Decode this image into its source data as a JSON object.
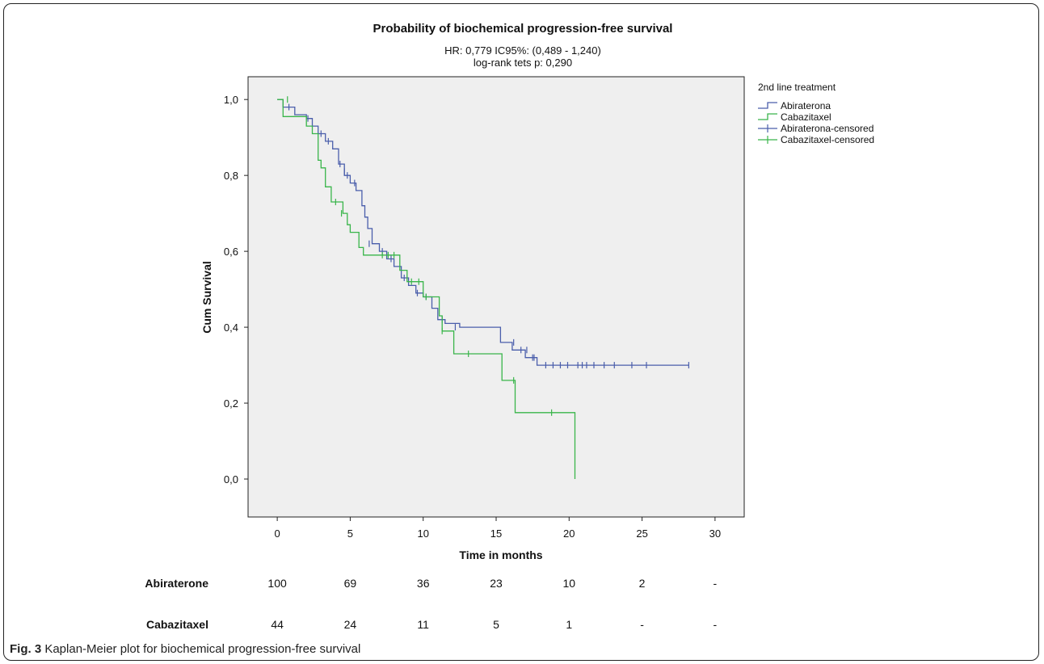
{
  "chart_data": {
    "type": "line",
    "title": "Probability of biochemical progression-free survival",
    "subtitle_lines": [
      "HR: 0,779 IC95%: (0,489 - 1,240)",
      "log-rank tets p: 0,290"
    ],
    "xlabel": "Time in months",
    "ylabel": "Cum Survival",
    "xlim": [
      -2,
      32
    ],
    "ylim": [
      -0.1,
      1.06
    ],
    "xticks": [
      0,
      5,
      10,
      15,
      20,
      25,
      30
    ],
    "xtick_labels": [
      "0",
      "5",
      "10",
      "15",
      "20",
      "25",
      "30"
    ],
    "yticks": [
      0,
      0.2,
      0.4,
      0.6,
      0.8,
      1.0
    ],
    "ytick_labels": [
      "0,0",
      "0,2",
      "0,4",
      "0,6",
      "0,8",
      "1,0"
    ],
    "grid": false,
    "legend_title": "2nd line treatment",
    "legend_position": "right",
    "legend": [
      {
        "label": "Abiraterona",
        "kind": "step",
        "series": 0
      },
      {
        "label": "Cabazitaxel",
        "kind": "step",
        "series": 1
      },
      {
        "label": "Abiraterona-censored",
        "kind": "censor",
        "series": 0
      },
      {
        "label": "Cabazitaxel-censored",
        "kind": "censor",
        "series": 1
      }
    ],
    "series": [
      {
        "name": "Abiraterona",
        "color": "#4a5eab",
        "steps": [
          [
            0,
            1.0
          ],
          [
            0.4,
            0.98
          ],
          [
            1.2,
            0.96
          ],
          [
            2.0,
            0.95
          ],
          [
            2.4,
            0.93
          ],
          [
            2.8,
            0.91
          ],
          [
            3.3,
            0.89
          ],
          [
            3.8,
            0.87
          ],
          [
            4.2,
            0.83
          ],
          [
            4.6,
            0.8
          ],
          [
            5.0,
            0.78
          ],
          [
            5.4,
            0.76
          ],
          [
            5.8,
            0.72
          ],
          [
            6.0,
            0.69
          ],
          [
            6.2,
            0.66
          ],
          [
            6.5,
            0.62
          ],
          [
            7.0,
            0.6
          ],
          [
            7.5,
            0.58
          ],
          [
            8.0,
            0.56
          ],
          [
            8.5,
            0.53
          ],
          [
            9.0,
            0.51
          ],
          [
            9.5,
            0.49
          ],
          [
            10.0,
            0.48
          ],
          [
            10.6,
            0.45
          ],
          [
            11.0,
            0.42
          ],
          [
            11.5,
            0.41
          ],
          [
            12.5,
            0.4
          ],
          [
            15.3,
            0.36
          ],
          [
            16.1,
            0.34
          ],
          [
            17.0,
            0.32
          ],
          [
            17.8,
            0.3
          ],
          [
            28.2,
            0.3
          ]
        ],
        "censored": [
          [
            0.8,
            0.98
          ],
          [
            2.1,
            0.95
          ],
          [
            3.0,
            0.91
          ],
          [
            3.5,
            0.89
          ],
          [
            4.3,
            0.83
          ],
          [
            4.6,
            0.81
          ],
          [
            4.8,
            0.8
          ],
          [
            5.3,
            0.78
          ],
          [
            6.3,
            0.62
          ],
          [
            7.2,
            0.6
          ],
          [
            7.8,
            0.58
          ],
          [
            8.7,
            0.53
          ],
          [
            9.6,
            0.49
          ],
          [
            10.2,
            0.48
          ],
          [
            11.3,
            0.42
          ],
          [
            12.2,
            0.4
          ],
          [
            16.2,
            0.36
          ],
          [
            16.7,
            0.34
          ],
          [
            17.1,
            0.34
          ],
          [
            17.5,
            0.32
          ],
          [
            17.6,
            0.32
          ],
          [
            18.4,
            0.3
          ],
          [
            18.9,
            0.3
          ],
          [
            19.4,
            0.3
          ],
          [
            19.9,
            0.3
          ],
          [
            20.6,
            0.3
          ],
          [
            20.9,
            0.3
          ],
          [
            21.2,
            0.3
          ],
          [
            21.7,
            0.3
          ],
          [
            22.4,
            0.3
          ],
          [
            23.1,
            0.3
          ],
          [
            24.3,
            0.3
          ],
          [
            25.3,
            0.3
          ],
          [
            28.2,
            0.3
          ]
        ]
      },
      {
        "name": "Cabazitaxel",
        "color": "#39b54a",
        "steps": [
          [
            0,
            1.0
          ],
          [
            0.4,
            0.955
          ],
          [
            2.0,
            0.93
          ],
          [
            2.4,
            0.91
          ],
          [
            2.8,
            0.84
          ],
          [
            3.0,
            0.82
          ],
          [
            3.3,
            0.77
          ],
          [
            3.7,
            0.73
          ],
          [
            4.5,
            0.7
          ],
          [
            4.8,
            0.67
          ],
          [
            5.0,
            0.65
          ],
          [
            5.6,
            0.61
          ],
          [
            5.9,
            0.59
          ],
          [
            8.4,
            0.55
          ],
          [
            8.9,
            0.52
          ],
          [
            10.0,
            0.48
          ],
          [
            11.1,
            0.43
          ],
          [
            11.3,
            0.39
          ],
          [
            12.1,
            0.33
          ],
          [
            15.4,
            0.26
          ],
          [
            16.3,
            0.175
          ],
          [
            20.4,
            0.175
          ],
          [
            20.4,
            0.0
          ]
        ],
        "censored": [
          [
            0.7,
            1.0
          ],
          [
            4.0,
            0.73
          ],
          [
            4.4,
            0.7
          ],
          [
            7.2,
            0.59
          ],
          [
            7.6,
            0.59
          ],
          [
            8.0,
            0.59
          ],
          [
            9.2,
            0.52
          ],
          [
            9.7,
            0.52
          ],
          [
            10.2,
            0.48
          ],
          [
            11.3,
            0.39
          ],
          [
            13.1,
            0.33
          ],
          [
            16.2,
            0.26
          ],
          [
            18.8,
            0.175
          ]
        ]
      }
    ],
    "risk_table": {
      "times": [
        0,
        5,
        10,
        15,
        20,
        25,
        30
      ],
      "rows": [
        {
          "label": "Abiraterone",
          "values": [
            "100",
            "69",
            "36",
            "23",
            "10",
            "2",
            "-"
          ]
        },
        {
          "label": "Cabazitaxel",
          "values": [
            "44",
            "24",
            "11",
            "5",
            "1",
            "-",
            "-"
          ]
        }
      ]
    },
    "caption_bold": "Fig. 3",
    "caption_text": " Kaplan-Meier plot for biochemical progression-free survival"
  }
}
